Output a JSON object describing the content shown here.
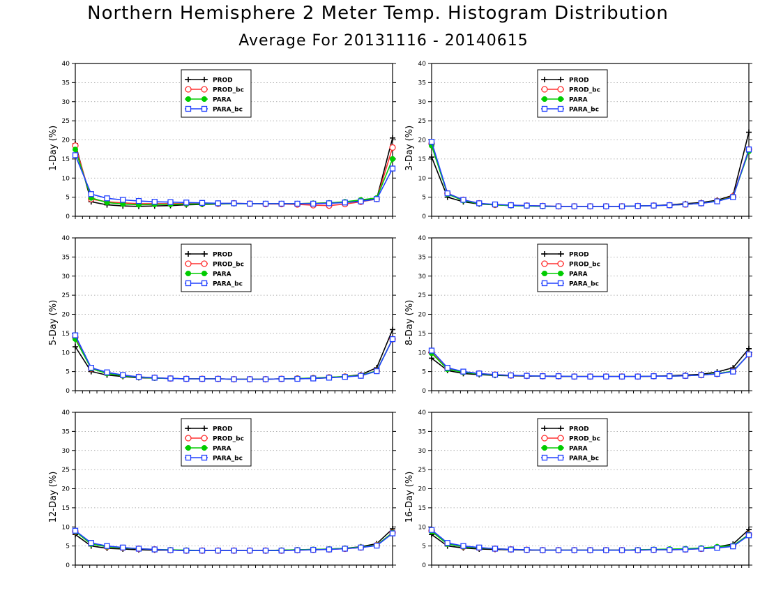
{
  "title": "Northern Hemisphere 2 Meter Temp. Histogram Distribution",
  "subtitle": "Average For 20131116 - 20140615",
  "colors": {
    "PROD": "#000000",
    "PROD_bc": "#ff3030",
    "PARA": "#00cc00",
    "PARA_bc": "#2040ff"
  },
  "chart_data": [
    {
      "type": "line",
      "ylabel": "1-Day (%)",
      "ylim": [
        0,
        40
      ],
      "yticks": [
        0,
        5,
        10,
        15,
        20,
        25,
        30,
        35,
        40
      ],
      "grid": true,
      "legend_position": "top-center",
      "x": [
        1,
        2,
        3,
        4,
        5,
        6,
        7,
        8,
        9,
        10,
        11,
        12,
        13,
        14,
        15,
        16,
        17,
        18,
        19,
        20,
        21
      ],
      "series": [
        {
          "name": "PROD",
          "marker": "plus",
          "values": [
            19,
            3.8,
            3.0,
            2.7,
            2.6,
            2.7,
            2.8,
            3.0,
            3.1,
            3.2,
            3.3,
            3.3,
            3.3,
            3.3,
            3.3,
            3.4,
            3.5,
            3.7,
            4.0,
            4.6,
            20.5
          ]
        },
        {
          "name": "PROD_bc",
          "marker": "circle",
          "values": [
            18.5,
            4.5,
            3.8,
            3.5,
            3.3,
            3.3,
            3.3,
            3.3,
            3.3,
            3.3,
            3.4,
            3.3,
            3.2,
            3.2,
            3.1,
            2.9,
            2.8,
            3.2,
            3.8,
            4.5,
            18
          ]
        },
        {
          "name": "PARA",
          "marker": "dot",
          "values": [
            17.5,
            4.8,
            3.6,
            3.2,
            3.0,
            3.1,
            3.1,
            3.2,
            3.2,
            3.3,
            3.3,
            3.3,
            3.3,
            3.3,
            3.3,
            3.4,
            3.5,
            3.8,
            4.3,
            4.8,
            15
          ]
        },
        {
          "name": "PARA_bc",
          "marker": "square",
          "values": [
            16,
            5.8,
            4.7,
            4.3,
            4.0,
            3.8,
            3.7,
            3.6,
            3.5,
            3.4,
            3.4,
            3.3,
            3.3,
            3.3,
            3.3,
            3.3,
            3.4,
            3.6,
            3.9,
            4.5,
            12.5
          ]
        }
      ]
    },
    {
      "type": "line",
      "ylabel": "3-Day (%)",
      "ylim": [
        0,
        40
      ],
      "yticks": [
        0,
        5,
        10,
        15,
        20,
        25,
        30,
        35,
        40
      ],
      "grid": true,
      "legend_position": "top-center",
      "x": [
        1,
        2,
        3,
        4,
        5,
        6,
        7,
        8,
        9,
        10,
        11,
        12,
        13,
        14,
        15,
        16,
        17,
        18,
        19,
        20,
        21
      ],
      "series": [
        {
          "name": "PROD",
          "marker": "plus",
          "values": [
            15.5,
            5.0,
            3.8,
            3.2,
            3.0,
            2.8,
            2.7,
            2.6,
            2.6,
            2.6,
            2.6,
            2.6,
            2.6,
            2.7,
            2.8,
            3.0,
            3.3,
            3.6,
            4.2,
            5.5,
            22
          ]
        },
        {
          "name": "PROD_bc",
          "marker": "circle",
          "values": [
            19,
            6.0,
            4.3,
            3.4,
            3.0,
            2.9,
            2.8,
            2.7,
            2.6,
            2.6,
            2.6,
            2.6,
            2.6,
            2.7,
            2.8,
            2.9,
            3.1,
            3.4,
            4.0,
            5.2,
            17.5
          ]
        },
        {
          "name": "PARA",
          "marker": "dot",
          "values": [
            18.5,
            5.8,
            4.1,
            3.3,
            3.0,
            2.8,
            2.7,
            2.6,
            2.6,
            2.6,
            2.6,
            2.6,
            2.6,
            2.7,
            2.8,
            2.9,
            3.1,
            3.4,
            4.0,
            5.1,
            17
          ]
        },
        {
          "name": "PARA_bc",
          "marker": "square",
          "values": [
            19.5,
            6.0,
            4.3,
            3.4,
            3.1,
            2.9,
            2.8,
            2.7,
            2.6,
            2.6,
            2.6,
            2.6,
            2.6,
            2.7,
            2.8,
            2.9,
            3.1,
            3.4,
            3.9,
            5.0,
            17.5
          ]
        }
      ]
    },
    {
      "type": "line",
      "ylabel": "5-Day (%)",
      "ylim": [
        0,
        40
      ],
      "yticks": [
        0,
        5,
        10,
        15,
        20,
        25,
        30,
        35,
        40
      ],
      "grid": true,
      "legend_position": "top-center",
      "x": [
        1,
        2,
        3,
        4,
        5,
        6,
        7,
        8,
        9,
        10,
        11,
        12,
        13,
        14,
        15,
        16,
        17,
        18,
        19,
        20,
        21
      ],
      "series": [
        {
          "name": "PROD",
          "marker": "plus",
          "values": [
            11.5,
            5.0,
            4.1,
            3.7,
            3.4,
            3.3,
            3.2,
            3.1,
            3.1,
            3.1,
            3.0,
            3.0,
            3.0,
            3.1,
            3.1,
            3.2,
            3.4,
            3.7,
            4.2,
            6.0,
            16
          ]
        },
        {
          "name": "PROD_bc",
          "marker": "circle",
          "values": [
            14,
            5.8,
            4.6,
            4.0,
            3.6,
            3.4,
            3.2,
            3.1,
            3.1,
            3.1,
            3.0,
            3.0,
            3.0,
            3.1,
            3.2,
            3.3,
            3.5,
            3.7,
            4.0,
            5.2,
            13.5
          ]
        },
        {
          "name": "PARA",
          "marker": "dot",
          "values": [
            13.5,
            5.8,
            4.5,
            3.9,
            3.5,
            3.3,
            3.2,
            3.1,
            3.1,
            3.1,
            3.0,
            3.0,
            3.0,
            3.1,
            3.2,
            3.3,
            3.5,
            3.7,
            4.0,
            5.2,
            13.5
          ]
        },
        {
          "name": "PARA_bc",
          "marker": "square",
          "values": [
            14.5,
            6.0,
            4.8,
            4.1,
            3.6,
            3.4,
            3.2,
            3.1,
            3.1,
            3.1,
            3.0,
            3.0,
            3.0,
            3.1,
            3.1,
            3.2,
            3.4,
            3.6,
            3.9,
            5.1,
            13.5
          ]
        }
      ]
    },
    {
      "type": "line",
      "ylabel": "8-Day (%)",
      "ylim": [
        0,
        40
      ],
      "yticks": [
        0,
        5,
        10,
        15,
        20,
        25,
        30,
        35,
        40
      ],
      "grid": true,
      "legend_position": "top-center",
      "x": [
        1,
        2,
        3,
        4,
        5,
        6,
        7,
        8,
        9,
        10,
        11,
        12,
        13,
        14,
        15,
        16,
        17,
        18,
        19,
        20,
        21
      ],
      "series": [
        {
          "name": "PROD",
          "marker": "plus",
          "values": [
            8.5,
            5.3,
            4.5,
            4.2,
            4.0,
            3.9,
            3.8,
            3.8,
            3.7,
            3.7,
            3.7,
            3.7,
            3.7,
            3.7,
            3.8,
            3.9,
            4.1,
            4.3,
            4.9,
            6.0,
            11
          ]
        },
        {
          "name": "PROD_bc",
          "marker": "circle",
          "values": [
            10,
            5.8,
            4.9,
            4.5,
            4.2,
            4.0,
            3.9,
            3.8,
            3.8,
            3.7,
            3.7,
            3.7,
            3.7,
            3.7,
            3.8,
            3.8,
            3.9,
            4.1,
            4.4,
            5.1,
            9.5
          ]
        },
        {
          "name": "PARA",
          "marker": "dot",
          "values": [
            9.8,
            5.6,
            4.8,
            4.4,
            4.1,
            4.0,
            3.9,
            3.8,
            3.8,
            3.7,
            3.7,
            3.7,
            3.7,
            3.7,
            3.8,
            3.8,
            3.9,
            4.1,
            4.5,
            5.1,
            9.5
          ]
        },
        {
          "name": "PARA_bc",
          "marker": "square",
          "values": [
            10.5,
            6.0,
            5.0,
            4.5,
            4.2,
            4.0,
            3.9,
            3.8,
            3.8,
            3.7,
            3.7,
            3.7,
            3.7,
            3.7,
            3.8,
            3.8,
            3.9,
            4.1,
            4.4,
            5.0,
            9.5
          ]
        }
      ]
    },
    {
      "type": "line",
      "ylabel": "12-Day (%)",
      "ylim": [
        0,
        40
      ],
      "yticks": [
        0,
        5,
        10,
        15,
        20,
        25,
        30,
        35,
        40
      ],
      "grid": true,
      "legend_position": "top-center",
      "x": [
        1,
        2,
        3,
        4,
        5,
        6,
        7,
        8,
        9,
        10,
        11,
        12,
        13,
        14,
        15,
        16,
        17,
        18,
        19,
        20,
        21
      ],
      "series": [
        {
          "name": "PROD",
          "marker": "plus",
          "values": [
            8,
            5.0,
            4.4,
            4.2,
            4.0,
            3.9,
            3.9,
            3.8,
            3.8,
            3.8,
            3.8,
            3.8,
            3.8,
            3.9,
            4.0,
            4.1,
            4.2,
            4.4,
            4.8,
            5.6,
            9.5
          ]
        },
        {
          "name": "PROD_bc",
          "marker": "circle",
          "values": [
            8.8,
            5.6,
            4.8,
            4.5,
            4.3,
            4.1,
            3.9,
            3.8,
            3.8,
            3.8,
            3.8,
            3.8,
            3.8,
            3.8,
            3.9,
            4.0,
            4.1,
            4.3,
            4.6,
            5.2,
            8.5
          ]
        },
        {
          "name": "PARA",
          "marker": "dot",
          "values": [
            8.8,
            5.5,
            4.8,
            4.5,
            4.3,
            4.1,
            4.0,
            3.9,
            3.8,
            3.8,
            3.8,
            3.8,
            3.8,
            3.9,
            4.0,
            4.1,
            4.2,
            4.4,
            4.7,
            5.2,
            8.5
          ]
        },
        {
          "name": "PARA_bc",
          "marker": "square",
          "values": [
            9.0,
            5.8,
            5.0,
            4.6,
            4.3,
            4.1,
            3.9,
            3.8,
            3.8,
            3.8,
            3.8,
            3.8,
            3.8,
            3.8,
            3.9,
            4.0,
            4.1,
            4.3,
            4.6,
            5.1,
            8.3
          ]
        }
      ]
    },
    {
      "type": "line",
      "ylabel": "16-Day (%)",
      "ylim": [
        0,
        40
      ],
      "yticks": [
        0,
        5,
        10,
        15,
        20,
        25,
        30,
        35,
        40
      ],
      "grid": true,
      "legend_position": "top-center",
      "x": [
        1,
        2,
        3,
        4,
        5,
        6,
        7,
        8,
        9,
        10,
        11,
        12,
        13,
        14,
        15,
        16,
        17,
        18,
        19,
        20,
        21
      ],
      "series": [
        {
          "name": "PROD",
          "marker": "plus",
          "values": [
            8,
            5.0,
            4.5,
            4.2,
            4.1,
            4.0,
            3.9,
            3.9,
            3.9,
            3.9,
            3.9,
            3.9,
            3.9,
            4.0,
            4.0,
            4.1,
            4.2,
            4.4,
            4.8,
            5.5,
            9.3
          ]
        },
        {
          "name": "PROD_bc",
          "marker": "circle",
          "values": [
            9.0,
            5.6,
            4.8,
            4.5,
            4.3,
            4.1,
            4.0,
            3.9,
            3.9,
            3.9,
            3.9,
            3.9,
            3.9,
            3.9,
            4.0,
            4.0,
            4.1,
            4.3,
            4.6,
            5.0,
            8.0
          ]
        },
        {
          "name": "PARA",
          "marker": "dot",
          "values": [
            8.8,
            5.5,
            4.8,
            4.5,
            4.3,
            4.1,
            4.0,
            3.9,
            3.9,
            3.9,
            3.9,
            3.9,
            3.9,
            4.0,
            4.1,
            4.2,
            4.3,
            4.5,
            4.8,
            5.1,
            8.0
          ]
        },
        {
          "name": "PARA_bc",
          "marker": "square",
          "values": [
            9.2,
            5.8,
            5.0,
            4.6,
            4.3,
            4.1,
            4.0,
            3.9,
            3.9,
            3.9,
            3.9,
            3.9,
            3.9,
            3.9,
            4.0,
            4.0,
            4.1,
            4.3,
            4.5,
            4.9,
            7.8
          ]
        }
      ]
    }
  ]
}
